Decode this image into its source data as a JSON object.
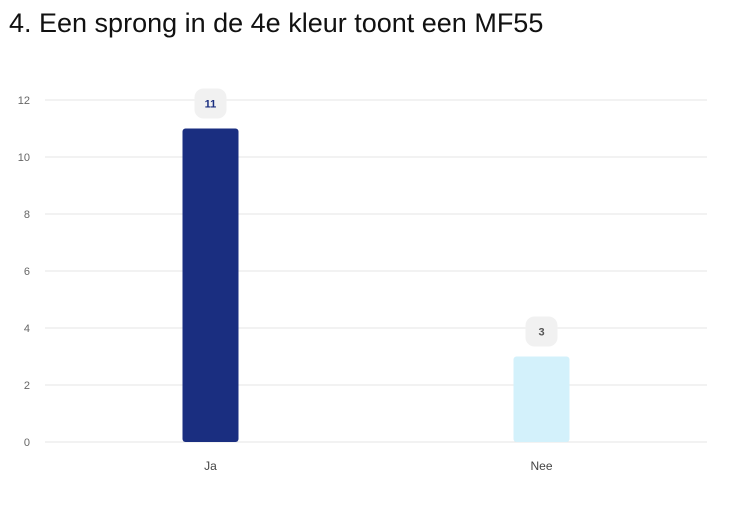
{
  "title": "4. Een sprong in de 4e kleur toont een MF55",
  "chart_data": {
    "type": "bar",
    "title": "4. Een sprong in de 4e kleur toont een MF55",
    "categories": [
      "Ja",
      "Nee"
    ],
    "values": [
      11,
      3
    ],
    "bar_colors": [
      "#1a2e80",
      "#d3f1fb"
    ],
    "ylim": [
      0,
      12
    ],
    "yticks": [
      "0",
      "2",
      "4",
      "6",
      "8",
      "10",
      "12"
    ],
    "grid": true,
    "legend": "none",
    "xlabel": "",
    "ylabel": ""
  }
}
